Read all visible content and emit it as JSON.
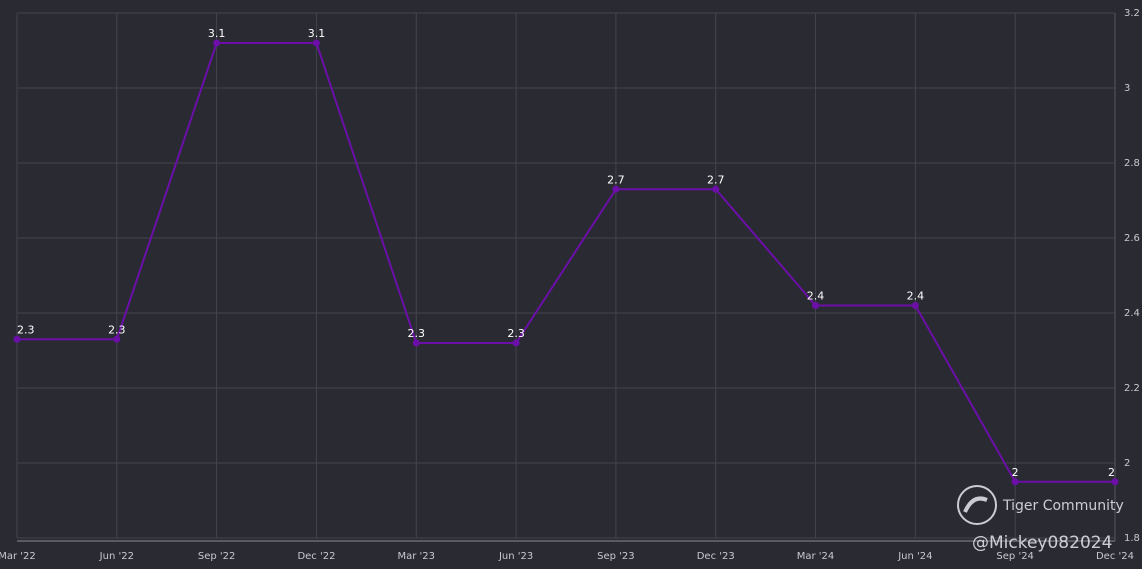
{
  "chart_data": {
    "type": "line",
    "categories": [
      "Mar '22",
      "Jun '22",
      "Sep '22",
      "Dec '22",
      "Mar '23",
      "Jun '23",
      "Sep '23",
      "Dec '23",
      "Mar '24",
      "Jun '24",
      "Sep '24",
      "Dec '24"
    ],
    "values": [
      2.33,
      2.33,
      3.12,
      3.12,
      2.32,
      2.32,
      2.73,
      2.73,
      2.42,
      2.42,
      1.95,
      1.95
    ],
    "value_labels": [
      "2.3",
      "2.3",
      "3.1",
      "3.1",
      "2.3",
      "2.3",
      "2.7",
      "2.7",
      "2.4",
      "2.4",
      "2",
      "2"
    ],
    "color": "#6b0fa8",
    "ylim": [
      1.8,
      3.2
    ],
    "yticks": [
      1.8,
      2,
      2.2,
      2.4,
      2.6,
      2.8,
      3,
      3.2
    ],
    "grid": true,
    "y_axis_side": "right"
  },
  "watermark": {
    "brand": "Tiger Community",
    "user": "@Mickey082024"
  }
}
